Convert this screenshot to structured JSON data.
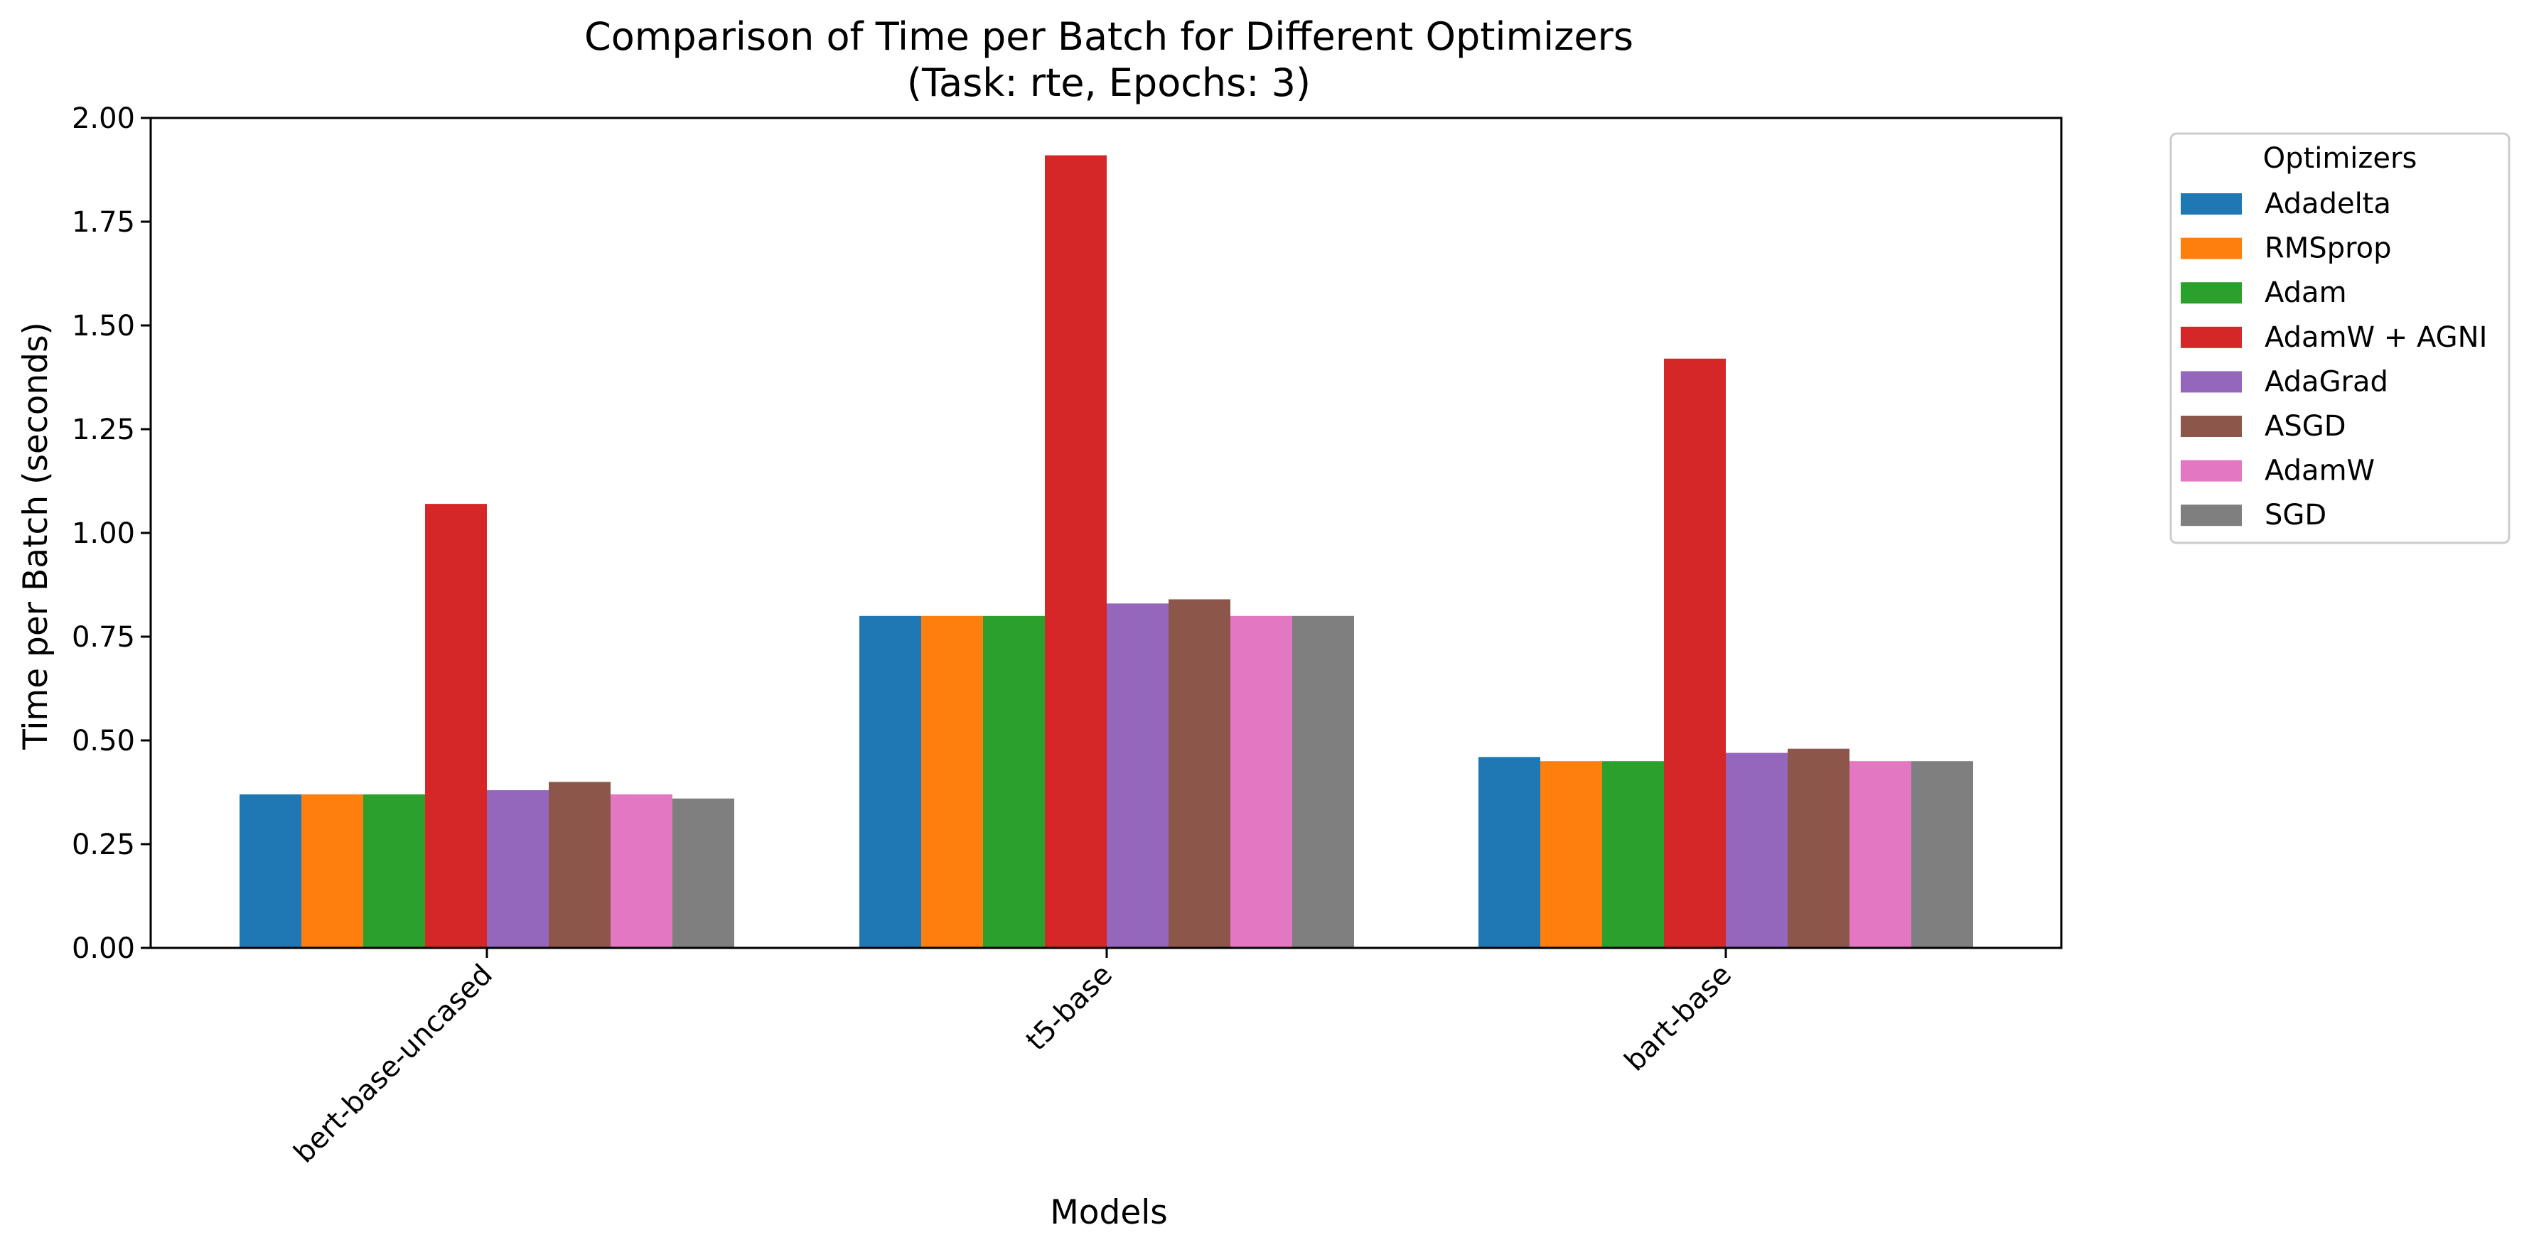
{
  "chart_data": {
    "type": "bar",
    "title": "Comparison of Time per Batch for Different Optimizers",
    "subtitle": "(Task: rte, Epochs: 3)",
    "xlabel": "Models",
    "ylabel": "Time per Batch (seconds)",
    "categories": [
      "bert-base-uncased",
      "t5-base",
      "bart-base"
    ],
    "ylim": [
      0,
      2.0
    ],
    "yticks": [
      0.0,
      0.25,
      0.5,
      0.75,
      1.0,
      1.25,
      1.5,
      1.75,
      2.0
    ],
    "ytick_labels": [
      "0.00",
      "0.25",
      "0.50",
      "0.75",
      "1.00",
      "1.25",
      "1.50",
      "1.75",
      "2.00"
    ],
    "grid": false,
    "legend": {
      "title": "Optimizers",
      "placement": "outside-right-top"
    },
    "series": [
      {
        "name": "Adadelta",
        "color": "#1f77b4",
        "values": [
          0.37,
          0.8,
          0.46
        ]
      },
      {
        "name": "RMSprop",
        "color": "#ff7f0e",
        "values": [
          0.37,
          0.8,
          0.45
        ]
      },
      {
        "name": "Adam",
        "color": "#2ca02c",
        "values": [
          0.37,
          0.8,
          0.45
        ]
      },
      {
        "name": "AdamW + AGNI",
        "color": "#d62728",
        "values": [
          1.07,
          1.91,
          1.42
        ]
      },
      {
        "name": "AdaGrad",
        "color": "#9467bd",
        "values": [
          0.38,
          0.83,
          0.47
        ]
      },
      {
        "name": "ASGD",
        "color": "#8c564b",
        "values": [
          0.4,
          0.84,
          0.48
        ]
      },
      {
        "name": "AdamW",
        "color": "#e377c2",
        "values": [
          0.37,
          0.8,
          0.45
        ]
      },
      {
        "name": "SGD",
        "color": "#7f7f7f",
        "values": [
          0.36,
          0.8,
          0.45
        ]
      }
    ]
  }
}
